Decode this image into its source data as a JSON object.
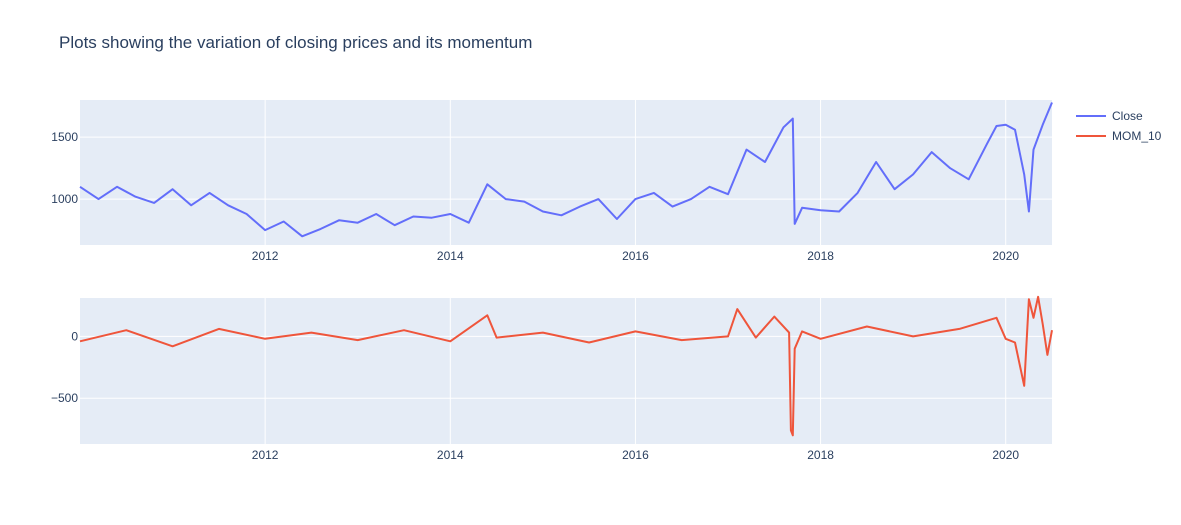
{
  "title": "Plots showing the variation of closing prices and its momentum",
  "colors": {
    "plot_bg": "#e5ecf6",
    "grid": "#ffffff",
    "tick_text": "#2a3f5f",
    "close": "#636efa",
    "mom": "#ef553b"
  },
  "legend": [
    {
      "name": "Close",
      "color": "#636efa"
    },
    {
      "name": "MOM_10",
      "color": "#ef553b"
    }
  ],
  "chart_data": [
    {
      "type": "line",
      "series_name": "Close",
      "x_tick_labels": [
        "2012",
        "2014",
        "2016",
        "2018",
        "2020"
      ],
      "x_ticks": [
        2012,
        2014,
        2016,
        2018,
        2020
      ],
      "xlim": [
        2010.0,
        2020.5
      ],
      "y_tick_labels": [
        "1000",
        "1500"
      ],
      "y_ticks": [
        1000,
        1500
      ],
      "ylim": [
        630,
        1800
      ],
      "grid": true,
      "x": [
        2010.0,
        2010.2,
        2010.4,
        2010.6,
        2010.8,
        2011.0,
        2011.2,
        2011.4,
        2011.6,
        2011.8,
        2012.0,
        2012.2,
        2012.4,
        2012.6,
        2012.8,
        2013.0,
        2013.2,
        2013.4,
        2013.6,
        2013.8,
        2014.0,
        2014.2,
        2014.4,
        2014.6,
        2014.8,
        2015.0,
        2015.2,
        2015.4,
        2015.6,
        2015.8,
        2016.0,
        2016.2,
        2016.4,
        2016.6,
        2016.8,
        2017.0,
        2017.2,
        2017.4,
        2017.6,
        2017.7,
        2017.72,
        2017.8,
        2018.0,
        2018.2,
        2018.4,
        2018.6,
        2018.8,
        2019.0,
        2019.2,
        2019.4,
        2019.6,
        2019.8,
        2019.9,
        2020.0,
        2020.1,
        2020.2,
        2020.25,
        2020.3,
        2020.4,
        2020.5
      ],
      "y": [
        1100,
        1000,
        1100,
        1020,
        970,
        1080,
        950,
        1050,
        950,
        880,
        750,
        820,
        700,
        760,
        830,
        810,
        880,
        790,
        860,
        850,
        880,
        810,
        1120,
        1000,
        980,
        900,
        870,
        940,
        1000,
        840,
        1000,
        1050,
        940,
        1000,
        1100,
        1040,
        1400,
        1300,
        1580,
        1650,
        800,
        930,
        910,
        900,
        1050,
        1300,
        1080,
        1200,
        1380,
        1250,
        1160,
        1450,
        1590,
        1600,
        1560,
        1200,
        900,
        1400,
        1600,
        1780
      ]
    },
    {
      "type": "line",
      "series_name": "MOM_10",
      "x_tick_labels": [
        "2012",
        "2014",
        "2016",
        "2018",
        "2020"
      ],
      "x_ticks": [
        2012,
        2014,
        2016,
        2018,
        2020
      ],
      "xlim": [
        2010.0,
        2020.5
      ],
      "y_tick_labels": [
        "0",
        "−500"
      ],
      "y_ticks": [
        0,
        -500
      ],
      "ylim": [
        -870,
        310
      ],
      "grid": true,
      "x": [
        2010.0,
        2010.5,
        2011.0,
        2011.5,
        2012.0,
        2012.5,
        2013.0,
        2013.5,
        2014.0,
        2014.4,
        2014.5,
        2015.0,
        2015.5,
        2016.0,
        2016.5,
        2017.0,
        2017.1,
        2017.3,
        2017.5,
        2017.66,
        2017.68,
        2017.7,
        2017.72,
        2017.8,
        2018.0,
        2018.5,
        2019.0,
        2019.5,
        2019.9,
        2020.0,
        2020.1,
        2020.2,
        2020.25,
        2020.3,
        2020.35,
        2020.4,
        2020.45,
        2020.5
      ],
      "y": [
        -40,
        50,
        -80,
        60,
        -20,
        30,
        -30,
        50,
        -40,
        170,
        -10,
        30,
        -50,
        40,
        -30,
        0,
        220,
        -10,
        160,
        30,
        -760,
        -800,
        -100,
        40,
        -20,
        80,
        0,
        60,
        150,
        -20,
        -50,
        -400,
        300,
        150,
        320,
        100,
        -150,
        50
      ]
    }
  ]
}
